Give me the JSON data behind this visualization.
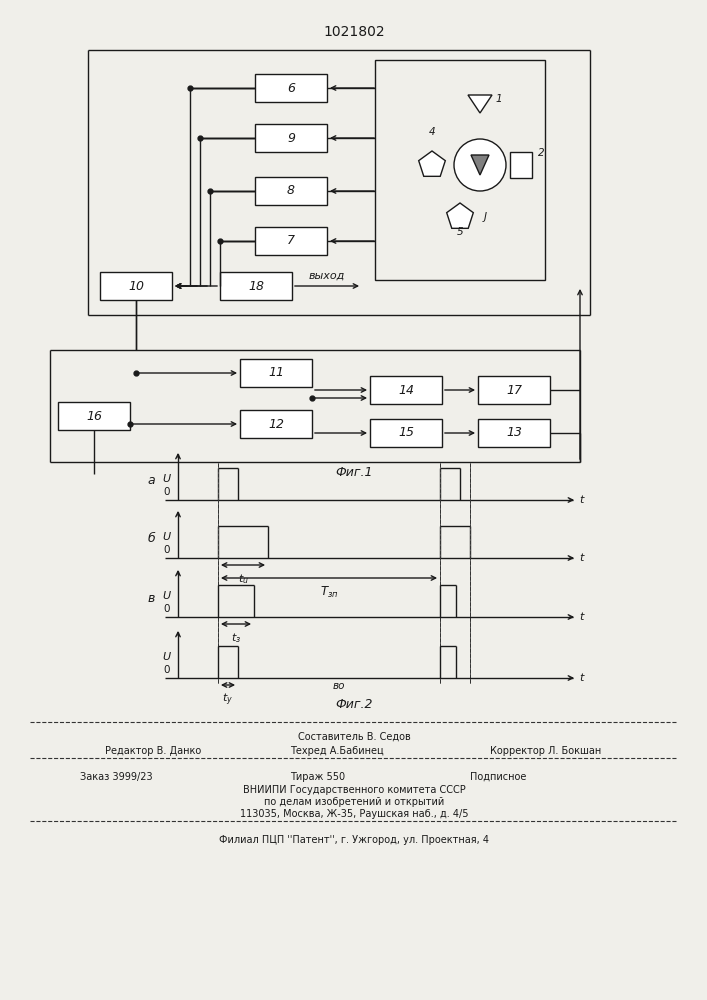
{
  "title": "1021802",
  "bg_color": "#f0efea",
  "box_fill": "#ffffff",
  "line_color": "#1a1a1a",
  "footer_sestavitel": "Составитель В. Седов",
  "footer_editor": "Редактор В. Данко",
  "footer_tekhred": "Техред А.Бабинец",
  "footer_korrektor": "Корректор Л. Бокшан",
  "footer_zakaz": "Заказ 3999/23",
  "footer_tirazh": "Тираж 550",
  "footer_podpisnoe": "Подписное",
  "footer_vniip1": "ВНИИПИ Государственного комитета СССР",
  "footer_vniip2": "по делам изобретений и открытий",
  "footer_vniip3": "113035, Москва, Ж-35, Раушская наб., д. 4/5",
  "footer_filial": "Филиал ПЦП ''Патент'', г. Ужгород, ул. Проектная, 4"
}
